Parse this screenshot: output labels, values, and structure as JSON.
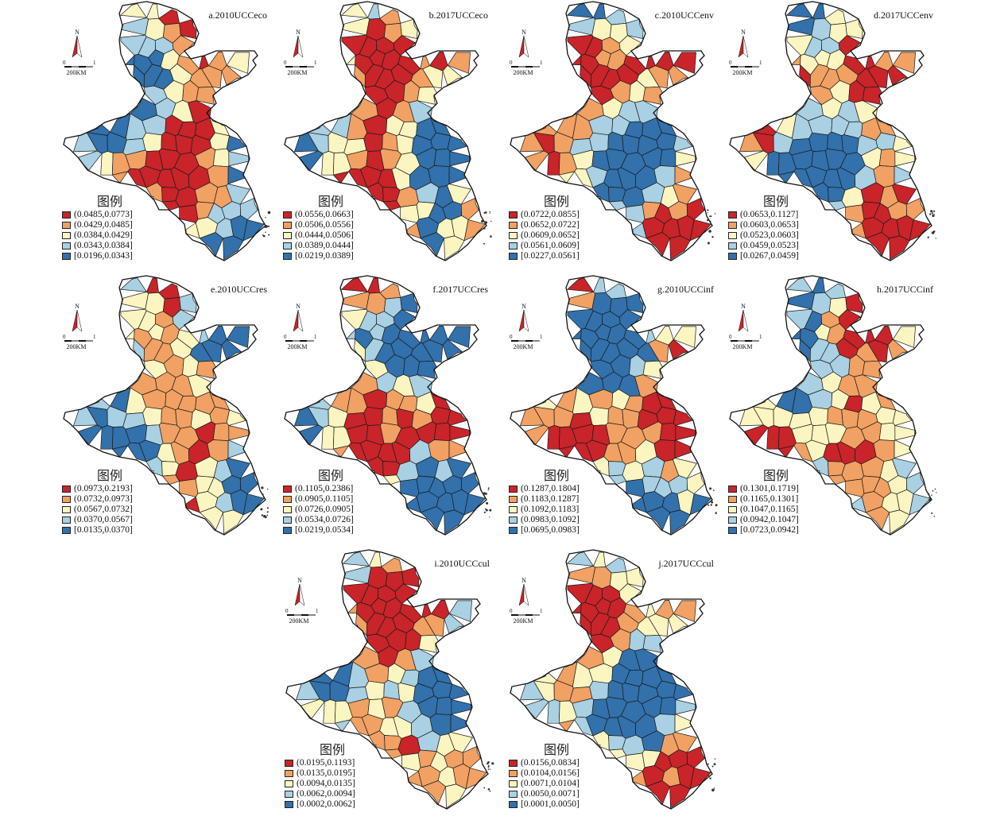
{
  "colors": {
    "c1": "#c8242a",
    "c2": "#f1a163",
    "c3": "#fbf5c1",
    "c4": "#a9d0e3",
    "c5": "#3271ab"
  },
  "legend_title": "图例",
  "north_label": "N",
  "scale_start": "0",
  "scale_end": "1",
  "scale_text": "200KM",
  "panels": [
    {
      "title": "a.2010UCCeco",
      "classes": [
        "(0.0485,0.0773]",
        "(0.0429,0.0485]",
        "(0.0384,0.0429]",
        "(0.0343,0.0384]",
        "[0.0196,0.0343]"
      ]
    },
    {
      "title": "b.2017UCCeco",
      "classes": [
        "(0.0556,0.0663]",
        "(0.0506,0.0556]",
        "(0.0444,0.0506]",
        "(0.0389,0.0444]",
        "[0.0219,0.0389]"
      ]
    },
    {
      "title": "c.2010UCCenv",
      "classes": [
        "(0.0722,0.0855]",
        "(0.0652,0.0722]",
        "(0.0609,0.0652]",
        "(0.0561,0.0609]",
        "[0.0227,0.0561]"
      ]
    },
    {
      "title": "d.2017UCCenv",
      "classes": [
        "(0.0653,0.1127]",
        "(0.0603,0.0653]",
        "(0.0523,0.0603]",
        "(0.0459,0.0523]",
        "[0.0267,0.0459]"
      ]
    },
    {
      "title": "e.2010UCCres",
      "classes": [
        "(0.0973,0.2193]",
        "(0.0732,0.0973]",
        "(0.0567,0.0732]",
        "(0.0370,0.0567]",
        "[0.0135,0.0370]"
      ]
    },
    {
      "title": "f.2017UCCres",
      "classes": [
        "(0.1105,0.2386]",
        "(0.0905,0.1105]",
        "(0.0726,0.0905]",
        "(0.0534,0.0726]",
        "[0.0219,0.0534]"
      ]
    },
    {
      "title": "g.2010UCCinf",
      "classes": [
        "(0.1287,0.1804]",
        "(0.1183,0.1287]",
        "(0.1092,0.1183]",
        "(0.0983,0.1092]",
        "[0.0695,0.0983]"
      ]
    },
    {
      "title": "h.2017UCCinf",
      "classes": [
        "(0.1301,0.1719]",
        "(0.1165,0.1301]",
        "(0.1047,0.1165]",
        "(0.0942,0.1047]",
        "[0.0723,0.0942]"
      ]
    },
    {
      "title": "i.2010UCCcul",
      "classes": [
        "(0.0195,0.1193]",
        "(0.0135,0.0195]",
        "(0.0094,0.0135]",
        "(0.0062,0.0094]",
        "[0.0002,0.0062]"
      ]
    },
    {
      "title": "j.2017UCCcul",
      "classes": [
        "(0.0156,0.0834]",
        "(0.0104,0.0156]",
        "(0.0071,0.0104]",
        "(0.0050,0.0071]",
        "[0.0001,0.0050]"
      ]
    }
  ]
}
